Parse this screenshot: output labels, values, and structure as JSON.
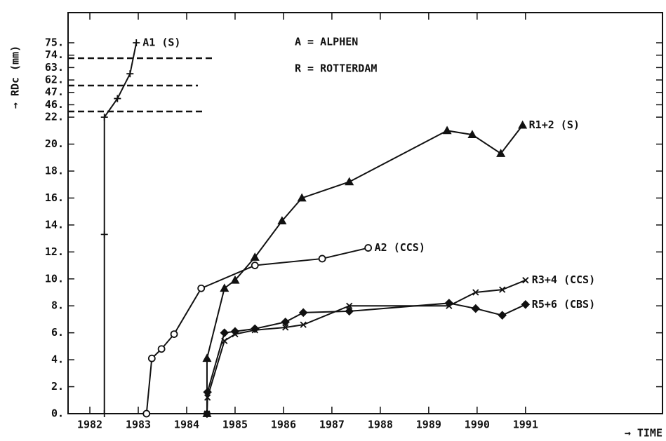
{
  "chart_data": {
    "type": "line",
    "y_label": "→ RDc (mm)",
    "x_label": "→ TIME",
    "annotations": [
      "A = ALPHEN",
      "R = ROTTERDAM"
    ],
    "xlim": [
      1981.55,
      1993.83
    ],
    "xticks": [
      1982,
      1983,
      1984,
      1985,
      1986,
      1987,
      1988,
      1989,
      1990,
      1991
    ],
    "ylim": [
      0,
      75
    ],
    "yticks": [
      {
        "value": 0,
        "label": "0."
      },
      {
        "value": 2,
        "label": "2."
      },
      {
        "value": 4,
        "label": "4."
      },
      {
        "value": 6,
        "label": "6."
      },
      {
        "value": 8,
        "label": "8."
      },
      {
        "value": 10,
        "label": "10."
      },
      {
        "value": 12,
        "label": "12."
      },
      {
        "value": 14,
        "label": "14."
      },
      {
        "value": 16,
        "label": "16."
      },
      {
        "value": 18,
        "label": "18."
      },
      {
        "value": 20,
        "label": "20."
      },
      {
        "value": 22,
        "label": "22."
      },
      {
        "value": 46,
        "label": "46."
      },
      {
        "value": 47,
        "label": "47."
      },
      {
        "value": 62,
        "label": "62."
      },
      {
        "value": 63,
        "label": "63."
      },
      {
        "value": 74,
        "label": "74."
      },
      {
        "value": 75,
        "label": "75."
      }
    ],
    "series": [
      {
        "name": "A1  (S)",
        "color": "#111111",
        "marker": "plus",
        "x": [
          1982.3,
          1982.3,
          1982.3,
          1982.57,
          1982.83,
          1982.96
        ],
        "values": [
          0,
          13.3,
          22,
          46.5,
          62.5,
          75
        ]
      },
      {
        "name": "A2  (CCS)",
        "color": "#111111",
        "marker": "circle",
        "x": [
          1983.17,
          1983.28,
          1983.48,
          1983.74,
          1984.3,
          1985.41,
          1986.8,
          1987.75
        ],
        "values": [
          0,
          4.1,
          4.8,
          5.9,
          9.3,
          11.0,
          11.5,
          12.3
        ]
      },
      {
        "name": "R1+2  (S)",
        "color": "#111111",
        "marker": "triangle",
        "x": [
          1984.42,
          1984.42,
          1984.78,
          1985.0,
          1985.41,
          1985.97,
          1986.38,
          1987.36,
          1989.38,
          1989.9,
          1990.49,
          1990.94
        ],
        "values": [
          0,
          4.1,
          9.3,
          9.9,
          11.6,
          14.3,
          16.0,
          17.2,
          21.0,
          20.7,
          19.3,
          21.4
        ]
      },
      {
        "name": "R3+4  (CCS)",
        "color": "#111111",
        "marker": "x",
        "x": [
          1984.42,
          1984.43,
          1984.78,
          1985.0,
          1985.41,
          1986.04,
          1986.41,
          1987.36,
          1989.42,
          1989.97,
          1990.52,
          1991.0
        ],
        "values": [
          0,
          1.2,
          5.4,
          5.9,
          6.2,
          6.4,
          6.6,
          8.0,
          8.0,
          9.0,
          9.2,
          9.9
        ]
      },
      {
        "name": "R5+6  (CBS)",
        "color": "#111111",
        "marker": "diamond",
        "x": [
          1984.42,
          1984.43,
          1984.78,
          1985.0,
          1985.41,
          1986.04,
          1986.41,
          1987.36,
          1989.42,
          1989.97,
          1990.52,
          1991.0
        ],
        "values": [
          0,
          1.6,
          6.0,
          6.1,
          6.3,
          6.8,
          7.5,
          7.6,
          8.2,
          7.8,
          7.3,
          8.1
        ]
      }
    ]
  }
}
